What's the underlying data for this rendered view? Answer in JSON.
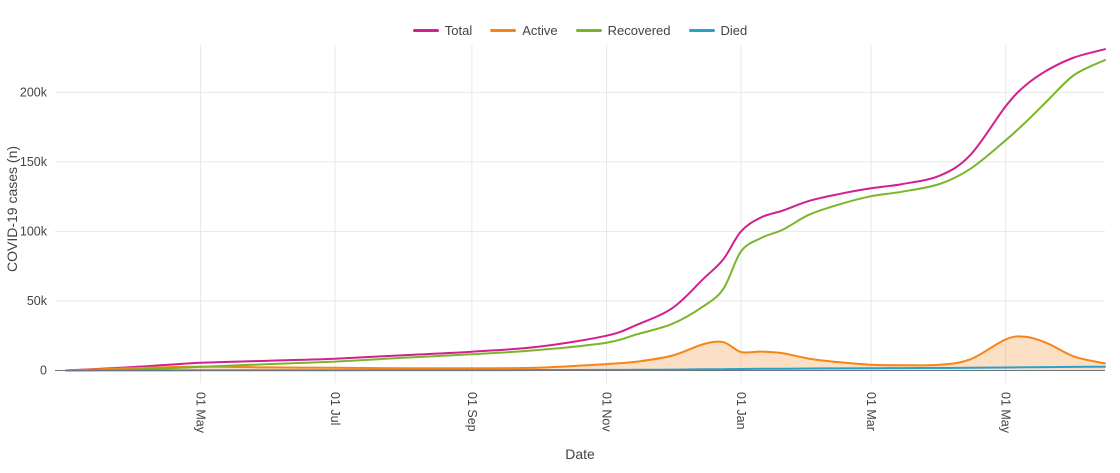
{
  "chart_data": {
    "type": "line",
    "title": "",
    "xlabel": "Date",
    "ylabel": "COVID-19 cases (n)",
    "legend_position": "top-center",
    "grid": true,
    "text_color": "#444444",
    "grid_color": "#e6e8ec",
    "zeroline_color": "#6b7480",
    "background_color": "#ffffff",
    "x_range": [
      "2020-02-25",
      "2021-06-15"
    ],
    "ylim": [
      -9000,
      234000
    ],
    "x_ticks": [
      {
        "date": "2020-05-01",
        "label": "01 May"
      },
      {
        "date": "2020-07-01",
        "label": "01 Jul"
      },
      {
        "date": "2020-09-01",
        "label": "01 Sep"
      },
      {
        "date": "2020-11-01",
        "label": "01 Nov"
      },
      {
        "date": "2021-01-01",
        "label": "01 Jan"
      },
      {
        "date": "2021-03-01",
        "label": "01 Mar"
      },
      {
        "date": "2021-05-01",
        "label": "01 May"
      }
    ],
    "y_ticks": [
      {
        "value": 0,
        "label": "0"
      },
      {
        "value": 50000,
        "label": "50k"
      },
      {
        "value": 100000,
        "label": "100k"
      },
      {
        "value": 150000,
        "label": "150k"
      },
      {
        "value": 200000,
        "label": "200k"
      }
    ],
    "x": [
      "2020-03-01",
      "2020-04-01",
      "2020-05-01",
      "2020-06-01",
      "2020-07-01",
      "2020-08-01",
      "2020-09-01",
      "2020-10-01",
      "2020-11-01",
      "2020-11-15",
      "2020-12-01",
      "2020-12-15",
      "2020-12-24",
      "2021-01-01",
      "2021-01-10",
      "2021-01-20",
      "2021-02-01",
      "2021-02-15",
      "2021-03-01",
      "2021-03-15",
      "2021-04-01",
      "2021-04-15",
      "2021-05-01",
      "2021-05-10",
      "2021-05-20",
      "2021-06-01",
      "2021-06-15"
    ],
    "series": [
      {
        "name": "Total",
        "color": "#d2208e",
        "values": [
          0,
          2500,
          5500,
          7000,
          8500,
          11000,
          13500,
          17000,
          25000,
          33000,
          45000,
          66000,
          80000,
          100000,
          110000,
          115000,
          122000,
          127000,
          131000,
          134000,
          140000,
          155000,
          190000,
          205000,
          216000,
          225000,
          231000
        ]
      },
      {
        "name": "Active",
        "color": "#f58518",
        "fill": "rgba(245,133,24,0.25)",
        "values": [
          0,
          1740,
          2780,
          2240,
          1900,
          1660,
          1570,
          1970,
          4580,
          6400,
          10760,
          18980,
          20350,
          13300,
          13600,
          12400,
          8500,
          5900,
          4100,
          3800,
          4100,
          8050,
          22350,
          24200,
          19450,
          10000,
          5050
        ]
      },
      {
        "name": "Recovered",
        "color": "#7cb52b",
        "values": [
          0,
          700,
          2600,
          4600,
          6400,
          9100,
          11650,
          14700,
          20000,
          26100,
          33600,
          46200,
          58700,
          85600,
          95200,
          101300,
          112100,
          119600,
          125300,
          128500,
          134100,
          145000,
          165500,
          178500,
          194100,
          212400,
          223200
        ]
      },
      {
        "name": "Died",
        "color": "#28a2cb",
        "values": [
          0,
          60,
          120,
          160,
          200,
          240,
          280,
          330,
          420,
          500,
          640,
          820,
          950,
          1100,
          1200,
          1300,
          1400,
          1500,
          1600,
          1700,
          1800,
          1950,
          2150,
          2300,
          2450,
          2600,
          2750
        ]
      }
    ]
  }
}
